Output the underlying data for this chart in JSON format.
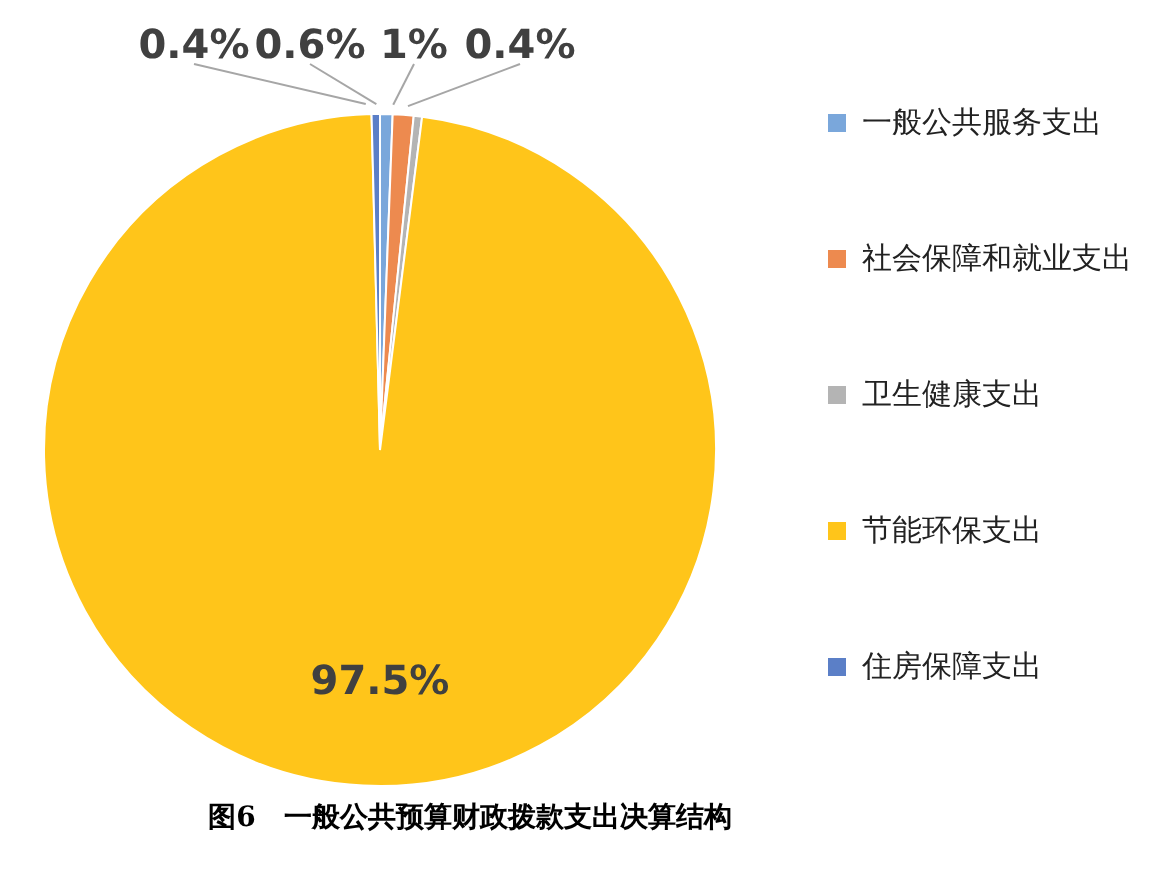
{
  "chart_data": {
    "type": "pie",
    "title": "图6　一般公共预算财政拨款支出决算结构",
    "categories": [
      "一般公共服务支出",
      "社会保障和就业支出",
      "卫生健康支出",
      "节能环保支出",
      "住房保障支出"
    ],
    "values": [
      0.6,
      1,
      0.4,
      97.5,
      0.4
    ],
    "colors": [
      "#7aa7db",
      "#ed8a4f",
      "#b4b4b4",
      "#ffc51a",
      "#5b7fc7"
    ],
    "value_labels": [
      "0.6%",
      "1%",
      "0.4%",
      "97.5%",
      "0.4%"
    ],
    "data_labels": true,
    "legend": "right"
  }
}
